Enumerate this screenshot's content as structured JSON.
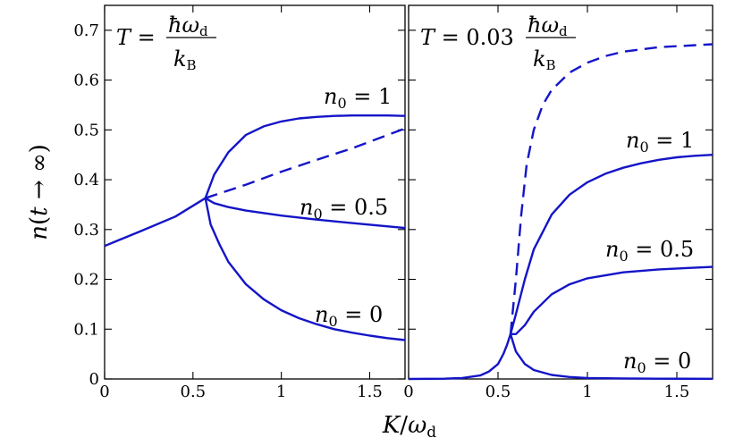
{
  "chart_data": [
    {
      "type": "line",
      "title": "T = ħω_d / k_B",
      "xlabel": "K/ω_d",
      "ylabel": "n(t → ∞)",
      "xlim": [
        0,
        1.7
      ],
      "ylim": [
        0,
        0.75
      ],
      "x_ticks": [
        "0",
        "0.5",
        "1",
        "1.5"
      ],
      "y_ticks": [
        "0",
        "0.1",
        "0.2",
        "0.3",
        "0.4",
        "0.5",
        "0.6",
        "0.7"
      ],
      "grid": false,
      "color": "#1414c8",
      "series": [
        {
          "name": "",
          "style": "solid",
          "x": [
            0,
            0.2,
            0.4,
            0.57
          ],
          "y": [
            0.267,
            0.296,
            0.326,
            0.363
          ]
        },
        {
          "name": "n_0 = 1",
          "style": "solid",
          "x": [
            0.57,
            0.62,
            0.7,
            0.8,
            0.9,
            1.0,
            1.1,
            1.2,
            1.3,
            1.4,
            1.5,
            1.6,
            1.7
          ],
          "y": [
            0.363,
            0.41,
            0.455,
            0.49,
            0.507,
            0.517,
            0.523,
            0.526,
            0.528,
            0.529,
            0.529,
            0.529,
            0.528
          ]
        },
        {
          "name": "",
          "style": "dashed",
          "x": [
            0.57,
            0.8,
            1.0,
            1.2,
            1.4,
            1.7
          ],
          "y": [
            0.363,
            0.39,
            0.416,
            0.44,
            0.463,
            0.503
          ]
        },
        {
          "name": "n_0 = 0.5",
          "style": "solid",
          "x": [
            0.57,
            0.62,
            0.7,
            0.8,
            1.0,
            1.2,
            1.4,
            1.7
          ],
          "y": [
            0.363,
            0.353,
            0.345,
            0.338,
            0.328,
            0.32,
            0.313,
            0.303
          ]
        },
        {
          "name": "n_0 = 0",
          "style": "solid",
          "x": [
            0.57,
            0.6,
            0.65,
            0.7,
            0.8,
            0.9,
            1.0,
            1.1,
            1.2,
            1.3,
            1.4,
            1.5,
            1.6,
            1.7
          ],
          "y": [
            0.363,
            0.31,
            0.27,
            0.235,
            0.19,
            0.16,
            0.138,
            0.122,
            0.11,
            0.1,
            0.093,
            0.087,
            0.082,
            0.078
          ]
        }
      ]
    },
    {
      "type": "line",
      "title": "T = 0.03 ħω_d / k_B",
      "xlabel": "K/ω_d",
      "xlim": [
        0,
        1.7
      ],
      "ylim": [
        0,
        0.75
      ],
      "x_ticks": [
        "0",
        "0.5",
        "1",
        "1.5"
      ],
      "grid": false,
      "color": "#1414c8",
      "series": [
        {
          "name": "",
          "style": "solid",
          "x": [
            0,
            0.2,
            0.3,
            0.4,
            0.45,
            0.5,
            0.53,
            0.55,
            0.57
          ],
          "y": [
            0.0,
            0.0005,
            0.002,
            0.007,
            0.015,
            0.03,
            0.05,
            0.068,
            0.09
          ]
        },
        {
          "name": "",
          "style": "dashed",
          "x": [
            0.57,
            0.6,
            0.63,
            0.66,
            0.7,
            0.75,
            0.8,
            0.9,
            1.0,
            1.1,
            1.2,
            1.4,
            1.7
          ],
          "y": [
            0.09,
            0.2,
            0.33,
            0.43,
            0.5,
            0.55,
            0.58,
            0.615,
            0.635,
            0.648,
            0.657,
            0.666,
            0.672
          ]
        },
        {
          "name": "n_0 = 1",
          "style": "solid",
          "x": [
            0.57,
            0.6,
            0.65,
            0.7,
            0.8,
            0.9,
            1.0,
            1.1,
            1.2,
            1.3,
            1.4,
            1.5,
            1.6,
            1.7
          ],
          "y": [
            0.09,
            0.13,
            0.2,
            0.26,
            0.33,
            0.37,
            0.395,
            0.412,
            0.424,
            0.433,
            0.44,
            0.445,
            0.448,
            0.45
          ]
        },
        {
          "name": "n_0 = 0.5",
          "style": "solid",
          "x": [
            0.57,
            0.6,
            0.65,
            0.7,
            0.8,
            0.9,
            1.0,
            1.2,
            1.4,
            1.7
          ],
          "y": [
            0.09,
            0.09,
            0.108,
            0.135,
            0.17,
            0.19,
            0.202,
            0.214,
            0.22,
            0.225
          ]
        },
        {
          "name": "n_0 = 0",
          "style": "solid",
          "x": [
            0.57,
            0.6,
            0.65,
            0.7,
            0.8,
            0.9,
            1.0,
            1.2,
            1.4,
            1.7
          ],
          "y": [
            0.09,
            0.055,
            0.03,
            0.018,
            0.008,
            0.004,
            0.002,
            0.001,
            0.0005,
            0.0003
          ]
        }
      ]
    }
  ]
}
